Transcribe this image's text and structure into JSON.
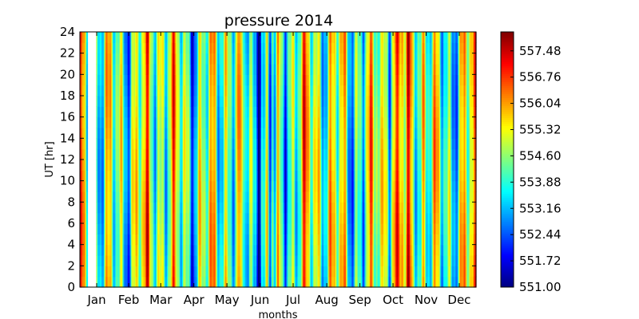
{
  "chart_data": {
    "type": "heatmap",
    "title": "pressure 2014",
    "xlabel": "months",
    "ylabel": "UT [hr]",
    "x_range_days": [
      1,
      365
    ],
    "ylim": [
      0,
      24
    ],
    "y_ticks": [
      "0",
      "2",
      "4",
      "6",
      "8",
      "10",
      "12",
      "14",
      "16",
      "18",
      "20",
      "22",
      "24"
    ],
    "months": [
      "Jan",
      "Feb",
      "Mar",
      "Apr",
      "May",
      "Jun",
      "Jul",
      "Aug",
      "Sep",
      "Oct",
      "Nov",
      "Dec"
    ],
    "colorbar": {
      "min": 551.0,
      "max": 558.0,
      "colormap": "jet",
      "ticks": [
        "551.00",
        "551.72",
        "552.44",
        "553.16",
        "553.88",
        "554.60",
        "555.32",
        "556.04",
        "556.76",
        "557.48"
      ]
    },
    "gaps": [
      {
        "start_day": 8,
        "end_day": 15,
        "note": "no data"
      }
    ],
    "daily_mean_pressure_by_month": [
      {
        "month": "Jan",
        "approx_range": [
          553.5,
          556.5
        ]
      },
      {
        "month": "Feb",
        "approx_range": [
          553.0,
          557.0
        ]
      },
      {
        "month": "Mar",
        "approx_range": [
          553.5,
          557.0
        ]
      },
      {
        "month": "Apr",
        "approx_range": [
          553.5,
          557.5
        ]
      },
      {
        "month": "May",
        "approx_range": [
          551.5,
          557.0
        ]
      },
      {
        "month": "Jun",
        "approx_range": [
          551.0,
          556.5
        ]
      },
      {
        "month": "Jul",
        "approx_range": [
          551.5,
          557.0
        ]
      },
      {
        "month": "Aug",
        "approx_range": [
          552.5,
          557.0
        ]
      },
      {
        "month": "Sep",
        "approx_range": [
          552.5,
          556.5
        ]
      },
      {
        "month": "Oct",
        "approx_range": [
          552.5,
          558.0
        ]
      },
      {
        "month": "Nov",
        "approx_range": [
          553.0,
          557.5
        ]
      },
      {
        "month": "Dec",
        "approx_range": [
          553.5,
          557.0
        ]
      }
    ]
  }
}
